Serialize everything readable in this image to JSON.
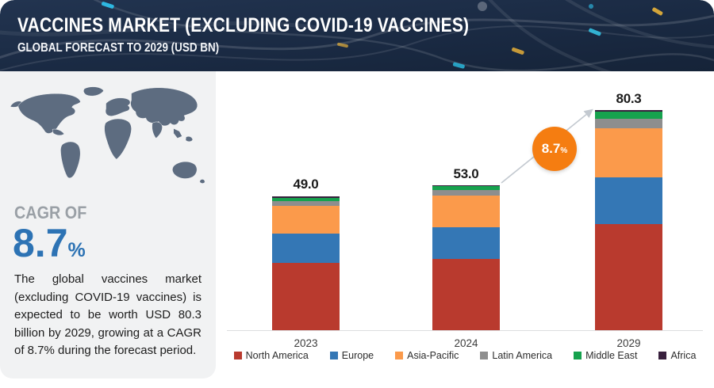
{
  "header": {
    "title": "VACCINES MARKET (EXCLUDING COVID-19 VACCINES)",
    "subtitle": "GLOBAL FORECAST TO 2029 (USD BN)"
  },
  "sidebar": {
    "cagr_label": "CAGR OF",
    "cagr_value": "8.7",
    "cagr_unit": "%",
    "description": "The global vaccines market (excluding COVID-19 vaccines) is expected to be worth USD 80.3 billion by 2029, growing at a CAGR of 8.7% during the forecast period."
  },
  "chart_data": {
    "type": "bar",
    "stacked": true,
    "title": "Vaccines Market (Excluding COVID-19 Vaccines), Global Forecast to 2029 (USD BN)",
    "categories": [
      "2023",
      "2024",
      "2029"
    ],
    "series": [
      {
        "name": "North America",
        "color": "#b93a2e",
        "values": [
          24.5,
          25.9,
          38.6
        ]
      },
      {
        "name": "Europe",
        "color": "#3477b5",
        "values": [
          10.9,
          11.7,
          17.2
        ]
      },
      {
        "name": "Asia-Pacific",
        "color": "#fb9a4b",
        "values": [
          10.0,
          11.6,
          18.0
        ]
      },
      {
        "name": "Latin America",
        "color": "#8e8e8e",
        "values": [
          1.7,
          1.9,
          3.5
        ]
      },
      {
        "name": "Middle East",
        "color": "#16a24e",
        "values": [
          1.1,
          1.6,
          2.6
        ]
      },
      {
        "name": "Africa",
        "color": "#38203d",
        "values": [
          0.8,
          0.3,
          0.4
        ]
      }
    ],
    "totals": [
      49.0,
      53.0,
      80.3
    ],
    "total_labels": [
      "49.0",
      "53.0",
      "80.3"
    ],
    "growth_annotation": {
      "value": "8.7",
      "unit": "%",
      "color": "#f57d11"
    },
    "xlabel": "",
    "ylabel": "",
    "ylim": [
      0,
      90
    ],
    "gridlines": false,
    "legend_position": "bottom"
  },
  "colors": {
    "header_bg": "#1a2a43",
    "accent_blue": "#2d73b4",
    "circle_orange": "#f57d11",
    "sidebar_bg": "#f1f2f3",
    "map_gray": "#5d6c80",
    "axis_gray": "#dcdddf"
  }
}
